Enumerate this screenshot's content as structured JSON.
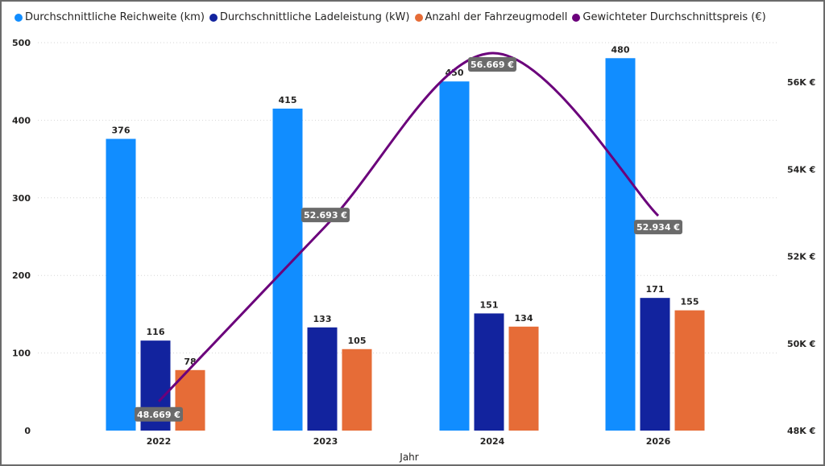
{
  "chart_data": {
    "type": "bar",
    "combo_line": true,
    "categories": [
      "2022",
      "2023",
      "2024",
      "2026"
    ],
    "xlabel": "Jahr",
    "ylim": [
      0,
      500
    ],
    "y_ticks": [
      "0",
      "100",
      "200",
      "300",
      "400",
      "500"
    ],
    "y_tick_values": [
      0,
      100,
      200,
      300,
      400,
      500
    ],
    "y2lim": [
      48000,
      56800
    ],
    "y2_ticks": [
      "48K €",
      "50K €",
      "52K €",
      "54K €",
      "56K €"
    ],
    "y2_tick_values": [
      48000,
      50000,
      52000,
      54000,
      56000
    ],
    "grid": true,
    "legend_position": "top-left",
    "series": [
      {
        "name": "Durchschnittliche Reichweite (km)",
        "color": "#118DFF",
        "values": [
          376,
          415,
          450,
          480
        ],
        "labels": [
          "376",
          "415",
          "450",
          "480"
        ]
      },
      {
        "name": "Durchschnittliche Ladeleistung (kW)",
        "color": "#12239E",
        "values": [
          116,
          133,
          151,
          171
        ],
        "labels": [
          "116",
          "133",
          "151",
          "171"
        ]
      },
      {
        "name": "Anzahl der Fahrzeugmodell",
        "color": "#E66C37",
        "values": [
          78,
          105,
          134,
          155
        ],
        "labels": [
          "78",
          "105",
          "134",
          "155"
        ]
      },
      {
        "name": "Gewichteter Durchschnittspreis (€)",
        "color": "#6B007B",
        "type": "line",
        "axis": "right",
        "values": [
          48669,
          52693,
          56669,
          52934
        ],
        "labels": [
          "48.669 €",
          "52.693 €",
          "56.669 €",
          "52.934 €"
        ]
      }
    ]
  }
}
